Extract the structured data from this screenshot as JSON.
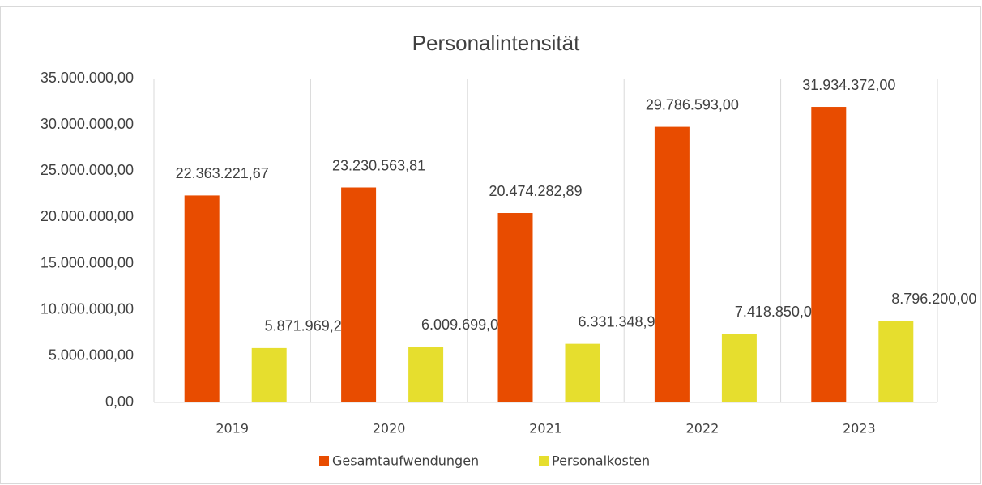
{
  "chart_data": {
    "type": "bar",
    "title": "Personalintensität",
    "categories": [
      "2019",
      "2020",
      "2021",
      "2022",
      "2023"
    ],
    "series": [
      {
        "name": "Gesamtaufwendungen",
        "color": "#e84c00",
        "values": [
          22363221.67,
          23230563.81,
          20474282.89,
          29786593.0,
          31934372.0
        ],
        "value_labels": [
          "22.363.221,67",
          "23.230.563,81",
          "20.474.282,89",
          "29.786.593,00",
          "31.934.372,00"
        ]
      },
      {
        "name": "Personalkosten",
        "color": "#e6de2e",
        "values": [
          5871969.28,
          6009699.07,
          6331348.95,
          7418850.0,
          8796200.0
        ],
        "value_labels": [
          "5.871.969,28",
          "6.009.699,07",
          "6.331.348,95",
          "7.418.850,00",
          "8.796.200,00"
        ]
      }
    ],
    "ylim": [
      0,
      35000000
    ],
    "yticks": [
      {
        "value": 0,
        "label": "0,00"
      },
      {
        "value": 5000000,
        "label": "5.000.000,00"
      },
      {
        "value": 10000000,
        "label": "10.000.000,00"
      },
      {
        "value": 15000000,
        "label": "15.000.000,00"
      },
      {
        "value": 20000000,
        "label": "20.000.000,00"
      },
      {
        "value": 25000000,
        "label": "25.000.000,00"
      },
      {
        "value": 30000000,
        "label": "30.000.000,00"
      },
      {
        "value": 35000000,
        "label": "35.000.000,00"
      }
    ],
    "grid": "x",
    "legend": "bottom"
  }
}
